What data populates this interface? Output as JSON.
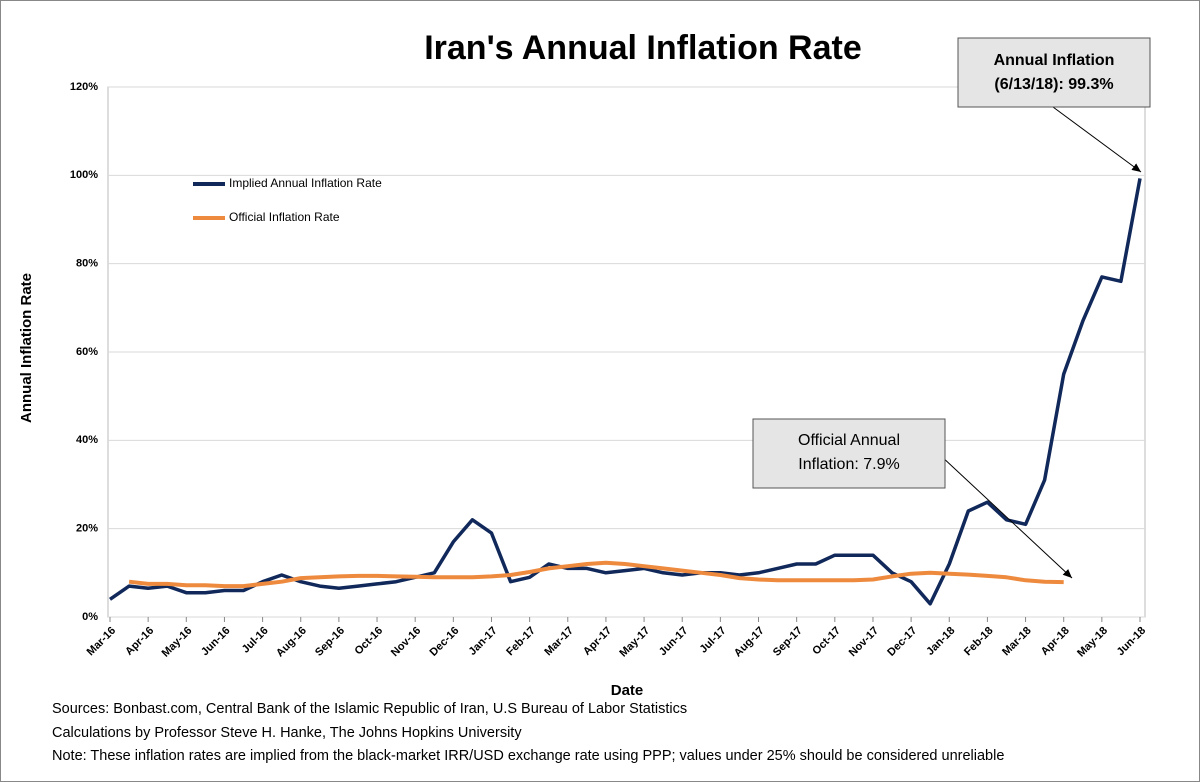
{
  "chart_data": {
    "type": "line",
    "title": "Iran's Annual Inflation Rate",
    "x_label": "Date",
    "y_label": "Annual Inflation Rate",
    "categories": [
      "Mar-16",
      null,
      "Apr-16",
      null,
      "May-16",
      null,
      "Jun-16",
      null,
      "Jul-16",
      null,
      "Aug-16",
      null,
      "Sep-16",
      null,
      "Oct-16",
      null,
      "Nov-16",
      null,
      "Dec-16",
      null,
      "Jan-17",
      null,
      "Feb-17",
      null,
      "Mar-17",
      null,
      "Apr-17",
      null,
      "May-17",
      null,
      "Jun-17",
      null,
      "Jul-17",
      null,
      "Aug-17",
      null,
      "Sep-17",
      null,
      "Oct-17",
      null,
      "Nov-17",
      null,
      "Dec-17",
      null,
      "Jan-18",
      null,
      "Feb-18",
      null,
      "Mar-18",
      null,
      "Apr-18",
      null,
      "May-18",
      null,
      "Jun-18"
    ],
    "series": [
      {
        "name": "Implied Annual Inflation Rate",
        "color": "#10285a",
        "values": [
          4,
          7,
          6.5,
          7,
          5.5,
          5.5,
          6,
          6,
          8,
          9.5,
          8,
          7,
          6.5,
          7,
          7.5,
          8,
          9,
          10,
          17,
          22,
          19,
          8,
          9,
          12,
          11,
          11,
          10,
          10.5,
          11,
          10,
          9.5,
          10,
          10,
          9.5,
          10,
          11,
          12,
          12,
          14,
          14,
          14,
          10,
          8,
          3,
          12,
          24,
          26,
          22,
          21,
          31,
          55,
          67,
          77,
          76,
          99.3
        ]
      },
      {
        "name": "Official Inflation Rate",
        "color": "#ee8a3e",
        "values": [
          null,
          8,
          7.5,
          7.5,
          7.2,
          7.2,
          7,
          7,
          7.5,
          8,
          8.8,
          9,
          9.2,
          9.3,
          9.3,
          9.2,
          9.1,
          9,
          9,
          9,
          9.2,
          9.5,
          10.2,
          11,
          11.5,
          12,
          12.3,
          12,
          11.5,
          11,
          10.5,
          10,
          9.5,
          8.8,
          8.5,
          8.3,
          8.3,
          8.3,
          8.3,
          8.3,
          8.5,
          9.2,
          9.8,
          10,
          9.8,
          9.6,
          9.3,
          9,
          8.3,
          8,
          7.9,
          null,
          null,
          null,
          null
        ]
      }
    ],
    "ylim": [
      0,
      120
    ],
    "yticks": [
      {
        "value": 0,
        "label": "0%"
      },
      {
        "value": 20,
        "label": "20%"
      },
      {
        "value": 40,
        "label": "40%"
      },
      {
        "value": 60,
        "label": "60%"
      },
      {
        "value": 80,
        "label": "80%"
      },
      {
        "value": 100,
        "label": "100%"
      },
      {
        "value": 120,
        "label": "120%"
      }
    ],
    "grid": true,
    "legend": "upper left",
    "annotations": [
      {
        "lines": [
          "Annual Inflation",
          "(6/13/18): 99.3%"
        ]
      },
      {
        "lines": [
          "Official Annual",
          "Inflation: 7.9%"
        ]
      }
    ],
    "notes": [
      "Sources: Bonbast.com, Central Bank of the Islamic Republic of Iran, U.S Bureau of Labor Statistics",
      "Calculations by Professor Steve H. Hanke, The Johns Hopkins University",
      "Note: These inflation rates are implied from the black-market IRR/USD exchange rate using PPP; values under 25% should be considered unreliable"
    ]
  }
}
